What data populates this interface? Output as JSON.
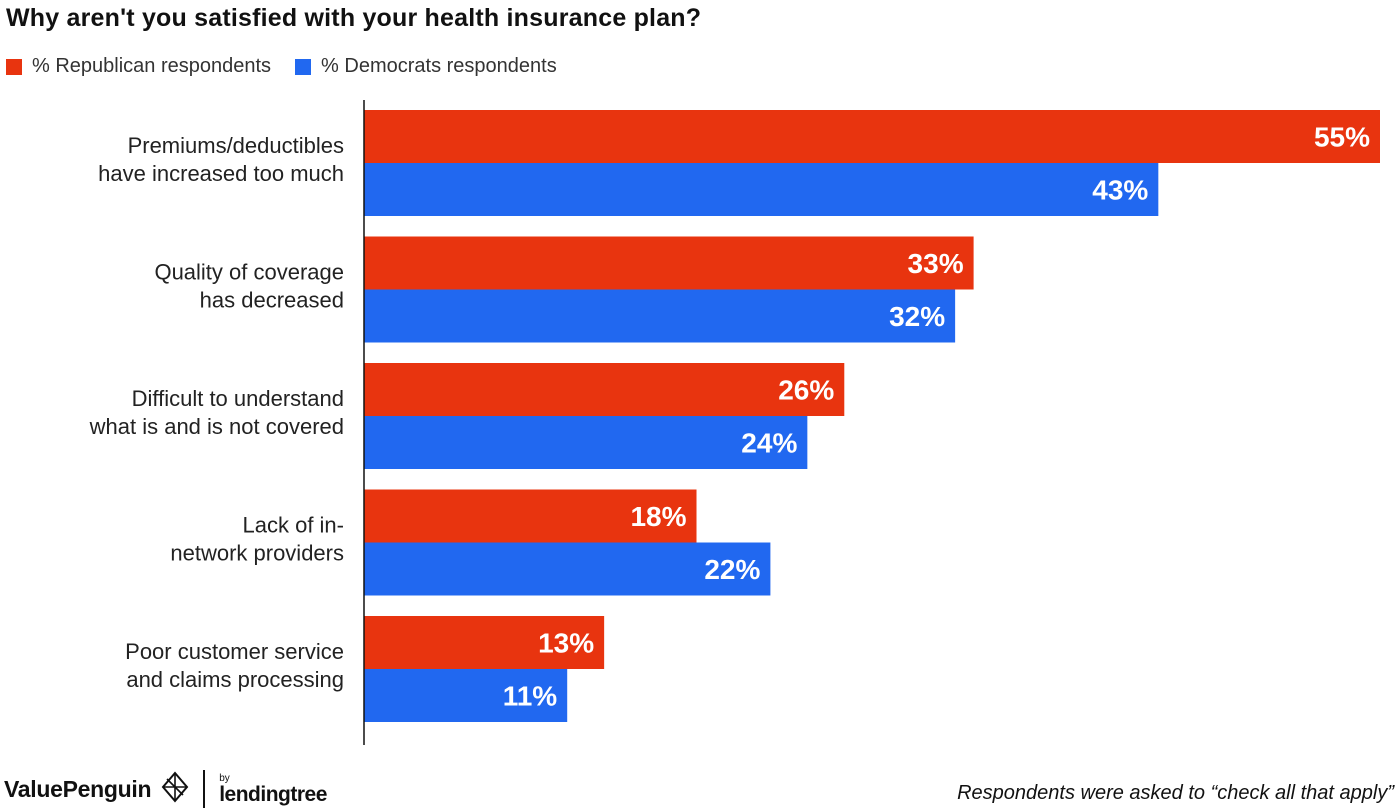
{
  "chart_data": {
    "type": "bar",
    "orientation": "horizontal",
    "title": "Why aren't you satisfied with your health insurance plan?",
    "categories": [
      [
        "Premiums/deductibles",
        "have increased too much"
      ],
      [
        "Quality of coverage",
        "has decreased"
      ],
      [
        "Difficult to understand",
        "what is and is not covered"
      ],
      [
        "Lack of in-",
        "network providers"
      ],
      [
        "Poor customer service",
        "and claims processing"
      ]
    ],
    "series": [
      {
        "name": "% Republican respondents",
        "color": "#e8340f",
        "values": [
          55,
          33,
          26,
          18,
          13
        ],
        "labels": [
          "55%",
          "33%",
          "26%",
          "18%",
          "13%"
        ]
      },
      {
        "name": "% Democrats respondents",
        "color": "#2168f0",
        "values": [
          43,
          32,
          24,
          22,
          11
        ],
        "labels": [
          "43%",
          "32%",
          "24%",
          "22%",
          "11%"
        ]
      }
    ],
    "xlim": [
      0,
      55
    ],
    "legend": "top-left"
  },
  "branding": {
    "brand": "ValuePenguin",
    "partner_prefix": "by",
    "partner": "lendingtree"
  },
  "footnote": "Respondents were asked to “check all that apply”"
}
